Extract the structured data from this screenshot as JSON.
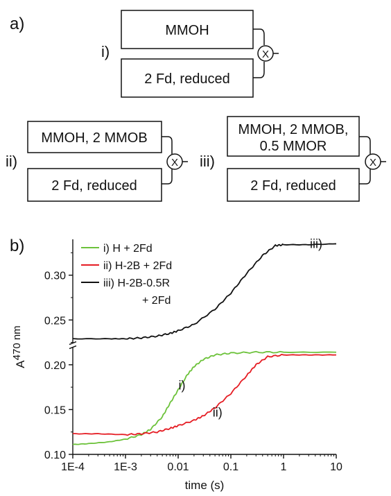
{
  "panel_a": {
    "label": "a)",
    "schemes": [
      {
        "roman": "i)",
        "top": [
          "MMOH"
        ],
        "bottom": [
          "2 Fd, reduced"
        ],
        "mixer": "X"
      },
      {
        "roman": "ii)",
        "top": [
          "MMOH, 2 MMOB"
        ],
        "bottom": [
          "2 Fd, reduced"
        ],
        "mixer": "X"
      },
      {
        "roman": "iii)",
        "top": [
          "MMOH, 2 MMOB,",
          "0.5 MMOR"
        ],
        "bottom": [
          "2 Fd, reduced"
        ],
        "mixer": "X"
      }
    ]
  },
  "panel_b": {
    "label": "b)"
  },
  "chart_data": {
    "type": "line",
    "xlabel": "time (s)",
    "ylabel_main": "A",
    "ylabel_sub": "470 nm",
    "x_scale": "log",
    "xlim": [
      0.0001,
      10
    ],
    "ylim": [
      0.1,
      0.34
    ],
    "y_break": [
      0.22,
      0.225
    ],
    "xticks": [
      {
        "value": 0.0001,
        "label": "1E-4"
      },
      {
        "value": 0.001,
        "label": "1E-3"
      },
      {
        "value": 0.01,
        "label": "0.01"
      },
      {
        "value": 0.1,
        "label": "0.1"
      },
      {
        "value": 1,
        "label": "1"
      },
      {
        "value": 10,
        "label": "10"
      }
    ],
    "yticks": [
      {
        "value": 0.1,
        "label": "0.10"
      },
      {
        "value": 0.15,
        "label": "0.15"
      },
      {
        "value": 0.2,
        "label": "0.20"
      },
      {
        "value": 0.25,
        "label": "0.25"
      },
      {
        "value": 0.3,
        "label": "0.30"
      }
    ],
    "legend_position": "top-left",
    "series": [
      {
        "name": "i) H + 2Fd",
        "color": "#6cc23a",
        "curve_label": "i)",
        "label_at": [
          0.009,
          0.177
        ],
        "points": [
          [
            0.0001,
            0.111
          ],
          [
            0.0002,
            0.112
          ],
          [
            0.0005,
            0.114
          ],
          [
            0.001,
            0.117
          ],
          [
            0.002,
            0.122
          ],
          [
            0.003,
            0.128
          ],
          [
            0.005,
            0.142
          ],
          [
            0.007,
            0.157
          ],
          [
            0.01,
            0.172
          ],
          [
            0.015,
            0.189
          ],
          [
            0.02,
            0.198
          ],
          [
            0.03,
            0.206
          ],
          [
            0.05,
            0.211
          ],
          [
            0.1,
            0.213
          ],
          [
            0.3,
            0.214
          ],
          [
            1,
            0.214
          ],
          [
            10,
            0.214
          ]
        ]
      },
      {
        "name": "ii) H-2B + 2Fd",
        "color": "#e51c23",
        "curve_label": "ii)",
        "label_at": [
          0.04,
          0.147
        ],
        "points": [
          [
            0.0001,
            0.123
          ],
          [
            0.0003,
            0.123
          ],
          [
            0.001,
            0.122
          ],
          [
            0.002,
            0.123
          ],
          [
            0.004,
            0.125
          ],
          [
            0.007,
            0.129
          ],
          [
            0.01,
            0.132
          ],
          [
            0.02,
            0.138
          ],
          [
            0.03,
            0.143
          ],
          [
            0.05,
            0.152
          ],
          [
            0.1,
            0.168
          ],
          [
            0.2,
            0.188
          ],
          [
            0.3,
            0.2
          ],
          [
            0.5,
            0.209
          ],
          [
            1,
            0.211
          ],
          [
            3,
            0.211
          ],
          [
            10,
            0.211
          ]
        ]
      },
      {
        "name": "iii) H-2B-0.5R",
        "name_line2": "+ 2Fd",
        "color": "#111111",
        "curve_label": "iii)",
        "label_at": [
          2.8,
          0.335
        ],
        "points": [
          [
            0.0001,
            0.229
          ],
          [
            0.0005,
            0.229
          ],
          [
            0.001,
            0.229
          ],
          [
            0.002,
            0.23
          ],
          [
            0.004,
            0.232
          ],
          [
            0.007,
            0.235
          ],
          [
            0.01,
            0.238
          ],
          [
            0.02,
            0.245
          ],
          [
            0.05,
            0.262
          ],
          [
            0.1,
            0.28
          ],
          [
            0.2,
            0.302
          ],
          [
            0.4,
            0.322
          ],
          [
            0.7,
            0.333
          ],
          [
            1,
            0.334
          ],
          [
            3,
            0.334
          ],
          [
            10,
            0.335
          ]
        ]
      }
    ]
  }
}
